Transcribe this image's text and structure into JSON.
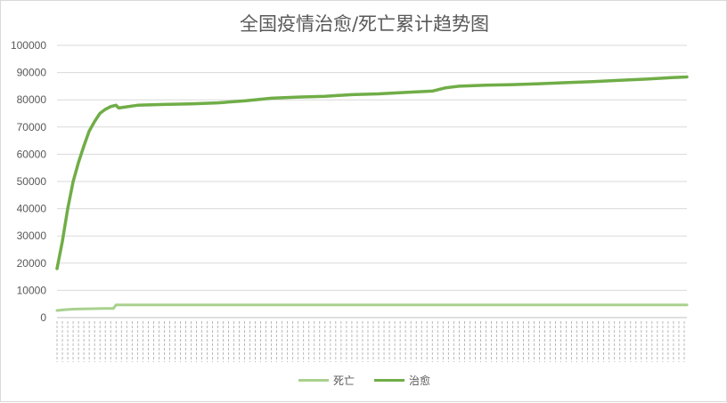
{
  "chart_data": {
    "type": "line",
    "title": "全国疫情治愈/死亡累计趋势图",
    "xlabel": "",
    "ylabel": "",
    "ylim": [
      0,
      100000
    ],
    "y_ticks": [
      "0",
      "10000",
      "20000",
      "30000",
      "40000",
      "50000",
      "60000",
      "70000",
      "80000",
      "90000",
      "100000"
    ],
    "grid": true,
    "legend_position": "bottom",
    "x_axis_note": "daily date categories, tick labels overlapping and illegible",
    "series": [
      {
        "name": "死亡",
        "color": "#a9d18e",
        "points": [
          [
            0,
            2600
          ],
          [
            3,
            2900
          ],
          [
            6,
            3100
          ],
          [
            9,
            3200
          ],
          [
            12,
            3250
          ],
          [
            15,
            3300
          ],
          [
            18,
            3330
          ],
          [
            21,
            3340
          ],
          [
            22,
            4632
          ],
          [
            30,
            4632
          ],
          [
            60,
            4632
          ],
          [
            90,
            4632
          ],
          [
            120,
            4633
          ],
          [
            150,
            4634
          ],
          [
            180,
            4634
          ],
          [
            210,
            4634
          ],
          [
            235,
            4634
          ]
        ]
      },
      {
        "name": "治愈",
        "color": "#70ad47",
        "points": [
          [
            0,
            18000
          ],
          [
            2,
            28000
          ],
          [
            4,
            40000
          ],
          [
            6,
            50000
          ],
          [
            8,
            57000
          ],
          [
            10,
            63000
          ],
          [
            12,
            68500
          ],
          [
            14,
            72000
          ],
          [
            16,
            75000
          ],
          [
            18,
            76500
          ],
          [
            20,
            77500
          ],
          [
            22,
            78000
          ],
          [
            23,
            77000
          ],
          [
            25,
            77300
          ],
          [
            30,
            78000
          ],
          [
            40,
            78300
          ],
          [
            50,
            78500
          ],
          [
            60,
            78900
          ],
          [
            70,
            79600
          ],
          [
            80,
            80600
          ],
          [
            90,
            81000
          ],
          [
            100,
            81300
          ],
          [
            110,
            81900
          ],
          [
            120,
            82200
          ],
          [
            130,
            82700
          ],
          [
            140,
            83200
          ],
          [
            145,
            84400
          ],
          [
            150,
            85000
          ],
          [
            160,
            85400
          ],
          [
            170,
            85600
          ],
          [
            180,
            85900
          ],
          [
            190,
            86300
          ],
          [
            200,
            86700
          ],
          [
            210,
            87200
          ],
          [
            220,
            87600
          ],
          [
            230,
            88200
          ],
          [
            235,
            88400
          ]
        ]
      }
    ]
  },
  "legend": [
    {
      "label": "死亡",
      "color": "#a9d18e"
    },
    {
      "label": "治愈",
      "color": "#70ad47"
    }
  ]
}
